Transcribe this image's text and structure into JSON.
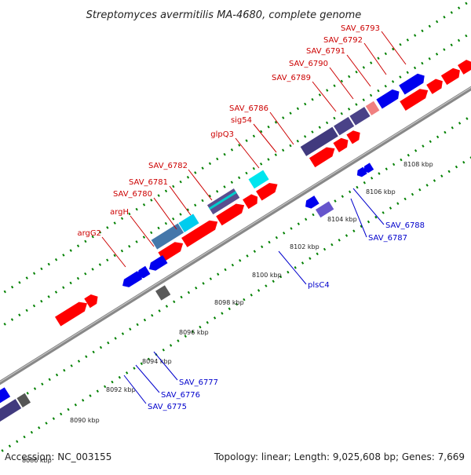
{
  "title": "Streptomyces avermitilis MA-4680, complete genome",
  "footer": {
    "accession": "Accession: NC_003155",
    "summary": "Topology: linear; Length: 9,025,608 bp; Genes: 7,669"
  },
  "colors": {
    "forward_label": "#cc0000",
    "reverse_label": "#0000cc",
    "forward_gene": "#ff0000",
    "reverse_gene": "#0000ff",
    "backbone": "#888888",
    "tick": "#008000"
  },
  "kbp_labels": [
    "8086 kbp",
    "8090 kbp",
    "8092 kbp",
    "8094 kbp",
    "8096 kbp",
    "8098 kbp",
    "8100 kbp",
    "8102 kbp",
    "8104 kbp",
    "8106 kbp",
    "8108 kbp"
  ],
  "forward_labels": [
    "argG2",
    "argH",
    "SAV_6780",
    "SAV_6781",
    "SAV_6782",
    "glpQ3",
    "sig54",
    "SAV_6786",
    "SAV_6789",
    "SAV_6790",
    "SAV_6791",
    "SAV_6792",
    "SAV_6793"
  ],
  "reverse_labels": [
    "SAV_6775",
    "SAV_6776",
    "SAV_6777",
    "plsC4",
    "SAV_6787",
    "SAV_6788"
  ]
}
